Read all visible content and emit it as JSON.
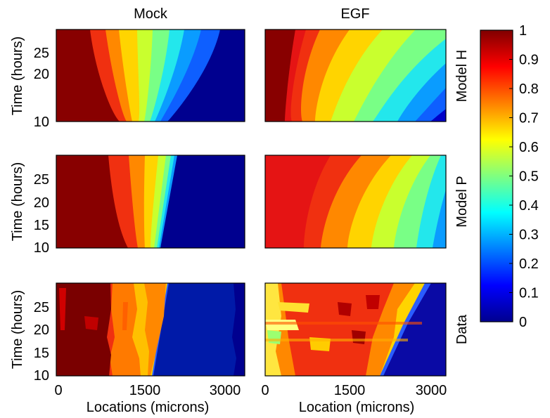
{
  "chart_data": {
    "type": "heatmap",
    "column_titles": [
      "Mock",
      "EGF"
    ],
    "row_labels": [
      "Model H",
      "Model P",
      "Data"
    ],
    "ylabel": "Time (hours)",
    "xlabels": [
      "Locations (microns)",
      "Location (microns)"
    ],
    "xticks": [
      0,
      1500,
      3000
    ],
    "xlim": [
      0,
      3200
    ],
    "ylim": [
      10,
      30
    ],
    "yticks_model_h": [
      10,
      20,
      25
    ],
    "yticks_other": [
      10,
      15,
      20,
      25
    ],
    "colorbar": {
      "range": [
        0,
        1
      ],
      "ticks": [
        "0",
        "0.1",
        "0.2",
        "0.3",
        "0.4",
        "0.5",
        "0.6",
        "0.7",
        "0.8",
        "0.9",
        "1"
      ]
    },
    "front_description": "approximate front location (microns) at which value drops to the given level",
    "panels": [
      {
        "name": "Model H / Mock",
        "levels": [
          0.95,
          0.85,
          0.75,
          0.65,
          0.55,
          0.45,
          0.35,
          0.25,
          0.15
        ],
        "front_t10": [
          1100,
          1250,
          1350,
          1450,
          1550,
          1650,
          1750,
          1850,
          1950
        ],
        "front_t30": [
          500,
          750,
          1000,
          1200,
          1400,
          1700,
          2000,
          2300,
          2600
        ]
      },
      {
        "name": "Model H / EGF",
        "levels": [
          0.95,
          0.85,
          0.75,
          0.65,
          0.55,
          0.45,
          0.35,
          0.25,
          0.15
        ],
        "front_t10": [
          900,
          1250,
          1650,
          2150,
          2550,
          2900,
          3100,
          3180,
          3200
        ],
        "front_t30": [
          500,
          1100,
          1700,
          2300,
          2800,
          3150,
          3200,
          3200,
          3200
        ]
      },
      {
        "name": "Model P / Mock",
        "levels": [
          0.95,
          0.85,
          0.75,
          0.65,
          0.55,
          0.45,
          0.35,
          0.25
        ],
        "front_t10": [
          1200,
          1450,
          1550,
          1620,
          1680,
          1720,
          1760,
          1790
        ],
        "front_t30": [
          800,
          1250,
          1550,
          1800,
          1950,
          2050,
          2100,
          2150
        ]
      },
      {
        "name": "Model P / EGF",
        "levels": [
          0.95,
          0.85,
          0.75,
          0.65,
          0.55,
          0.45,
          0.35,
          0.25
        ],
        "front_t10": [
          1400,
          1900,
          2300,
          2700,
          3000,
          3200,
          3200,
          3200
        ],
        "front_t30": [
          600,
          1400,
          2000,
          2600,
          3000,
          3150,
          3200,
          3200
        ]
      },
      {
        "name": "Data / Mock",
        "levels": [
          0.95,
          0.8,
          0.7,
          0.6
        ],
        "front_t10": [
          1050,
          1300,
          1500,
          1800
        ],
        "front_t30": [
          1050,
          1300,
          1550,
          2050
        ]
      },
      {
        "name": "Data / EGF",
        "levels": [
          0.6,
          0.15
        ],
        "front_t10": [
          300,
          2000
        ],
        "front_t30": [
          300,
          3000
        ]
      }
    ]
  }
}
